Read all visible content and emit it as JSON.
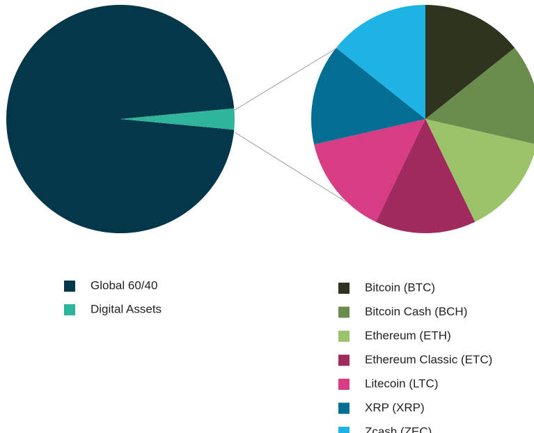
{
  "chart_data": [
    {
      "type": "pie",
      "categories": [
        "Global 60/40",
        "Digital Assets"
      ],
      "values": [
        97,
        3
      ],
      "colors": [
        "#04374a",
        "#2db49a"
      ]
    },
    {
      "type": "pie",
      "categories": [
        "Bitcoin (BTC)",
        "Bitcoin Cash (BCH)",
        "Ethereum (ETH)",
        "Ethereum Classic (ETC)",
        "Litecoin  (LTC)",
        "XRP (XRP)",
        "Zcash (ZEC)"
      ],
      "values": [
        14.3,
        14.3,
        14.3,
        14.3,
        14.3,
        14.3,
        14.3
      ],
      "colors": [
        "#2e3420",
        "#6a8c4c",
        "#9bc46a",
        "#a0295e",
        "#d63d82",
        "#036e94",
        "#1db3e5"
      ]
    }
  ]
}
